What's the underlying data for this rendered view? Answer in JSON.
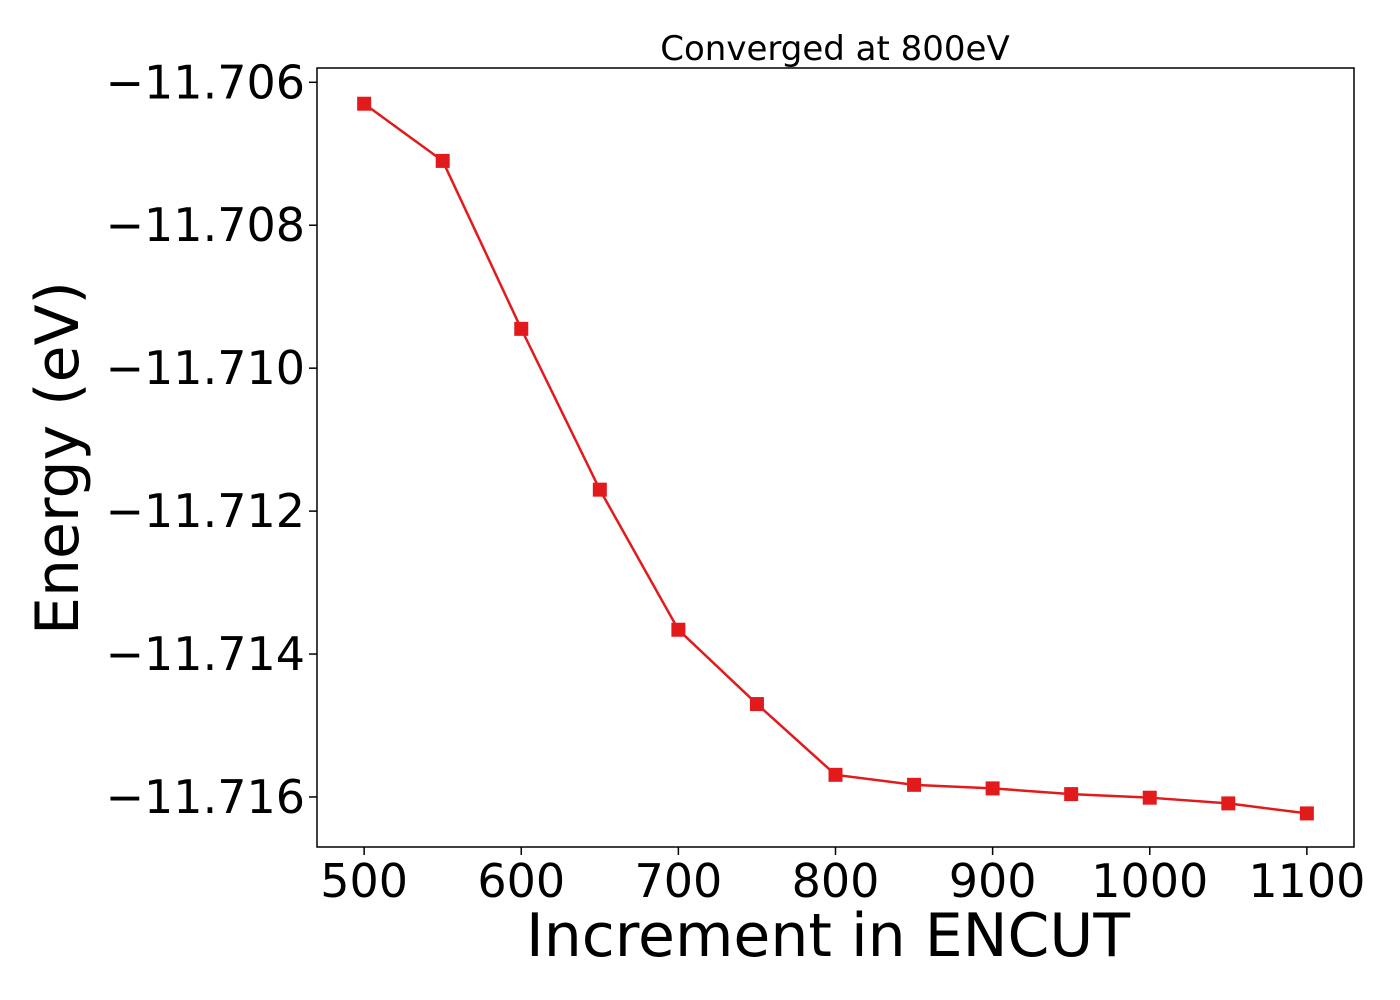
{
  "chart_data": {
    "type": "line",
    "title": "Converged at 800eV",
    "xlabel": "Increment in ENCUT",
    "ylabel": "Energy (eV)",
    "xlim": [
      470,
      1130
    ],
    "ylim": [
      -11.7167,
      -11.7058
    ],
    "xticks": [
      500,
      600,
      700,
      800,
      900,
      1000,
      1100
    ],
    "xtick_labels": [
      "500",
      "600",
      "700",
      "800",
      "900",
      "1000",
      "1100"
    ],
    "yticks": [
      -11.706,
      -11.708,
      -11.71,
      -11.712,
      -11.714,
      -11.716
    ],
    "ytick_labels": [
      "−11.706",
      "−11.708",
      "−11.710",
      "−11.712",
      "−11.714",
      "−11.716"
    ],
    "grid": false,
    "legend": "none",
    "series": [
      {
        "color": "#e31a1c",
        "marker": "square",
        "x": [
          500,
          550,
          600,
          650,
          700,
          750,
          800,
          850,
          900,
          950,
          1000,
          1050,
          1100
        ],
        "y": [
          -11.7063,
          -11.7071,
          -11.70945,
          -11.7117,
          -11.71366,
          -11.7147,
          -11.71569,
          -11.71583,
          -11.71588,
          -11.71596,
          -11.71601,
          -11.71609,
          -11.71623
        ]
      }
    ]
  }
}
